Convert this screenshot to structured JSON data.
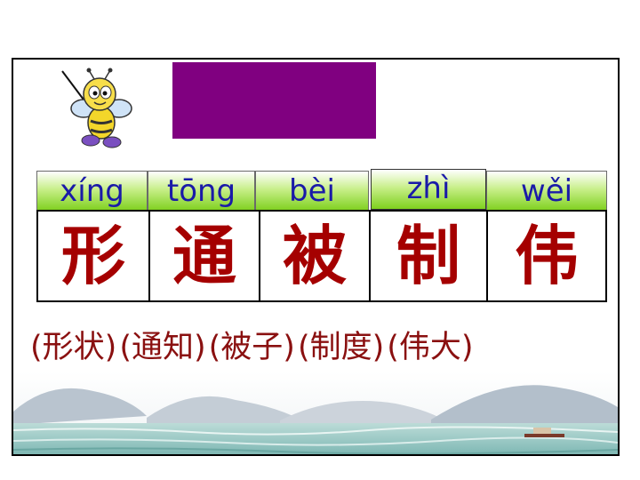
{
  "lesson": {
    "pinyin": [
      "xíng",
      "tōng",
      "bèi",
      "zhì",
      "wěi"
    ],
    "characters": [
      "形",
      "通",
      "被",
      "制",
      "伟"
    ],
    "words": [
      "(形状)",
      "(通知)",
      "(被子)",
      "(制度)",
      "(伟大)"
    ]
  },
  "colors": {
    "title_block": "#800080",
    "pinyin_text": "#1a1aa8",
    "character_text": "#a50000",
    "word_text": "#8a1010",
    "pinyin_bar": "#7ed01e"
  },
  "icons": {
    "mascot": "bee-teacher-with-pointer-icon"
  }
}
